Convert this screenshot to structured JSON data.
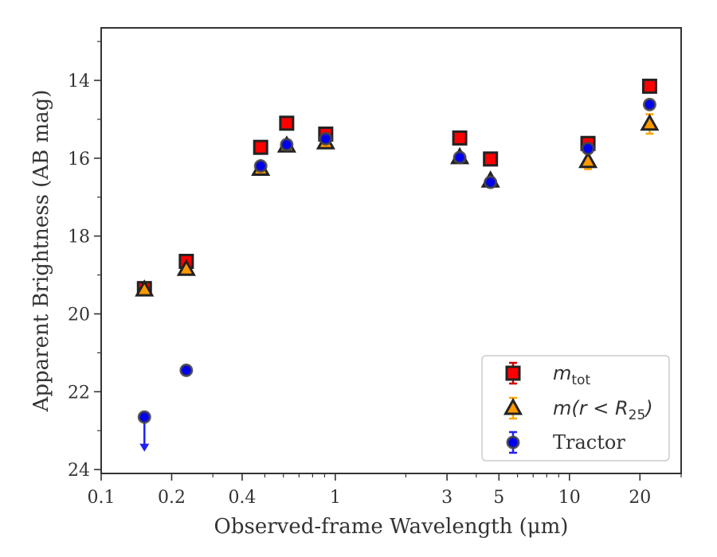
{
  "chart_data": {
    "type": "scatter",
    "xlabel": "Observed-frame Wavelength (μm)",
    "ylabel": "Apparent Brightness (AB mag)",
    "xscale": "log",
    "xlim": [
      0.1,
      30
    ],
    "ylim": [
      24.1,
      12.65
    ],
    "y_inverted": true,
    "x_ticks": [
      0.1,
      0.2,
      0.4,
      1,
      3,
      5,
      10,
      20
    ],
    "x_tick_labels": [
      "0.1",
      "0.2",
      "0.4",
      "1",
      "3",
      "5",
      "10",
      "20"
    ],
    "y_ticks": [
      14,
      16,
      18,
      20,
      22,
      24
    ],
    "y_tick_labels": [
      "14",
      "16",
      "18",
      "20",
      "22",
      "24"
    ],
    "legend_position": "lower-right",
    "series": [
      {
        "name": "m_tot",
        "label_main": "m",
        "label_sub": "tot",
        "marker": "square",
        "color": "#ff0000",
        "edge": "#222222",
        "errcolor": "#cc0000",
        "x": [
          0.153,
          0.231,
          0.48,
          0.62,
          0.91,
          3.4,
          4.6,
          12.0,
          22.0
        ],
        "y": [
          19.35,
          18.65,
          15.72,
          15.1,
          15.38,
          15.48,
          16.02,
          15.62,
          14.15
        ],
        "yerr": [
          0.05,
          0.05,
          0.03,
          0.03,
          0.03,
          0.03,
          0.03,
          0.08,
          0.05
        ]
      },
      {
        "name": "m(r < R25)",
        "label_main": "m(r < R",
        "label_sub": "25",
        "label_end": ")",
        "marker": "triangle",
        "color": "#ff9900",
        "edge": "#222222",
        "errcolor": "#ffa500",
        "x": [
          0.153,
          0.231,
          0.48,
          0.62,
          0.91,
          3.4,
          4.6,
          12.0,
          22.0
        ],
        "y": [
          19.38,
          18.85,
          16.28,
          15.68,
          15.6,
          15.98,
          16.58,
          16.08,
          15.12
        ],
        "yerr": [
          0.05,
          0.05,
          0.04,
          0.04,
          0.04,
          0.04,
          0.04,
          0.2,
          0.25
        ]
      },
      {
        "name": "Tractor",
        "marker": "circle",
        "color": "#0000ee",
        "edge": "#444444",
        "errcolor": "#2222ee",
        "x": [
          0.153,
          0.231,
          0.48,
          0.62,
          0.91,
          3.4,
          4.6,
          12.0,
          22.0
        ],
        "y": [
          22.65,
          21.45,
          16.2,
          15.65,
          15.5,
          15.98,
          16.62,
          15.75,
          14.62
        ],
        "yerr": [
          0.0,
          0.05,
          0.04,
          0.04,
          0.04,
          0.04,
          0.04,
          0.08,
          0.06
        ],
        "upper_limit_index": 0,
        "upper_limit_to": 23.5
      }
    ]
  }
}
